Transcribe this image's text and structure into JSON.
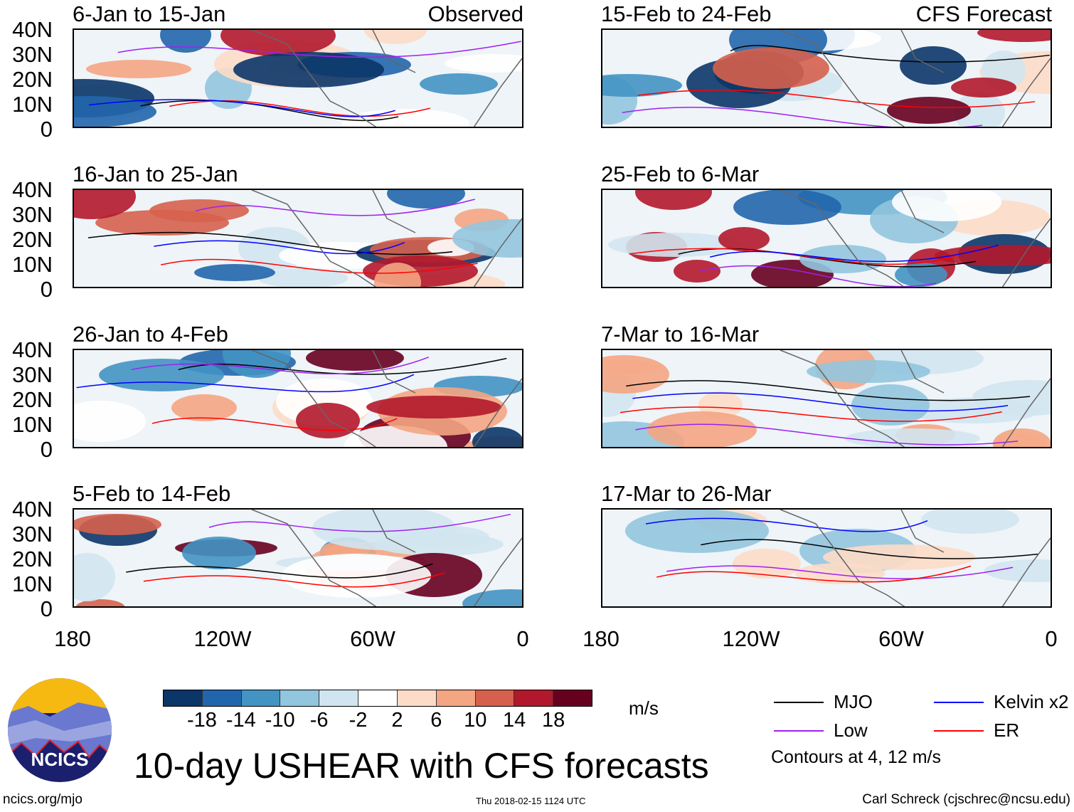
{
  "panels": {
    "left": [
      {
        "title": "6-Jan to 15-Jan",
        "label": "Observed"
      },
      {
        "title": "16-Jan to 25-Jan"
      },
      {
        "title": "26-Jan to 4-Feb"
      },
      {
        "title": "5-Feb to 14-Feb"
      }
    ],
    "right": [
      {
        "title": "15-Feb to 24-Feb",
        "label": "CFS Forecast"
      },
      {
        "title": "25-Feb to 6-Mar"
      },
      {
        "title": "7-Mar to 16-Mar"
      },
      {
        "title": "17-Mar to 26-Mar"
      }
    ]
  },
  "y_ticks": [
    "40N",
    "30N",
    "20N",
    "10N",
    "0"
  ],
  "x_ticks": [
    "180",
    "120W",
    "60W",
    "0"
  ],
  "colorbar": {
    "colors": [
      "#0b3668",
      "#2166ac",
      "#4393c3",
      "#92c5de",
      "#d1e5f0",
      "#ffffff",
      "#fddbc7",
      "#f4a582",
      "#d6604d",
      "#b2182b",
      "#67001f"
    ],
    "labels": [
      "-18",
      "-14",
      "-10",
      "-6",
      "-2",
      "2",
      "6",
      "10",
      "14",
      "18"
    ],
    "units": "m/s"
  },
  "legend": {
    "items": [
      {
        "label": "MJO",
        "color": "#000000"
      },
      {
        "label": "Kelvin x2",
        "color": "#0000ff"
      },
      {
        "label": "Low",
        "color": "#a020f0"
      },
      {
        "label": "ER",
        "color": "#ff0000"
      }
    ],
    "note": "Contours at 4, 12 m/s"
  },
  "logo": {
    "text": "NCICS"
  },
  "title": "10-day USHEAR with CFS forecasts",
  "footer": {
    "left": "ncics.org/mjo",
    "center": "Thu 2018-02-15 1124 UTC",
    "right": "Carl Schreck (cjschrec@ncsu.edu)"
  }
}
